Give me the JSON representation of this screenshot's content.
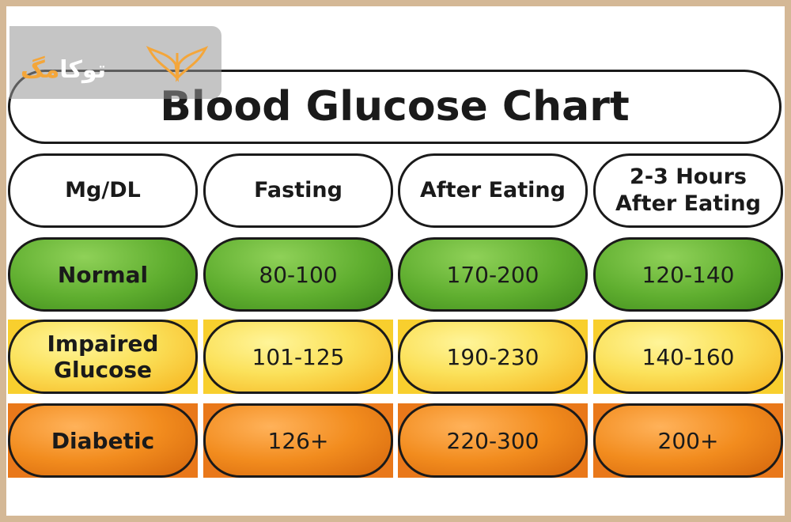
{
  "watermark": {
    "text_main": "توکا",
    "text_accent": "مگ"
  },
  "chart_data": {
    "type": "table",
    "title": "Blood Glucose Chart",
    "columns": [
      "Mg/DL",
      "Fasting",
      "After Eating",
      "2-3 Hours After Eating"
    ],
    "rows": [
      {
        "label": "Normal",
        "values": [
          "80-100",
          "170-200",
          "120-140"
        ],
        "color": "#5fae2f"
      },
      {
        "label": "Impaired Glucose",
        "values": [
          "101-125",
          "190-230",
          "140-160"
        ],
        "color": "#fbe15a"
      },
      {
        "label": "Diabetic",
        "values": [
          "126+",
          "220-300",
          "200+"
        ],
        "color": "#f28c1e"
      }
    ]
  }
}
